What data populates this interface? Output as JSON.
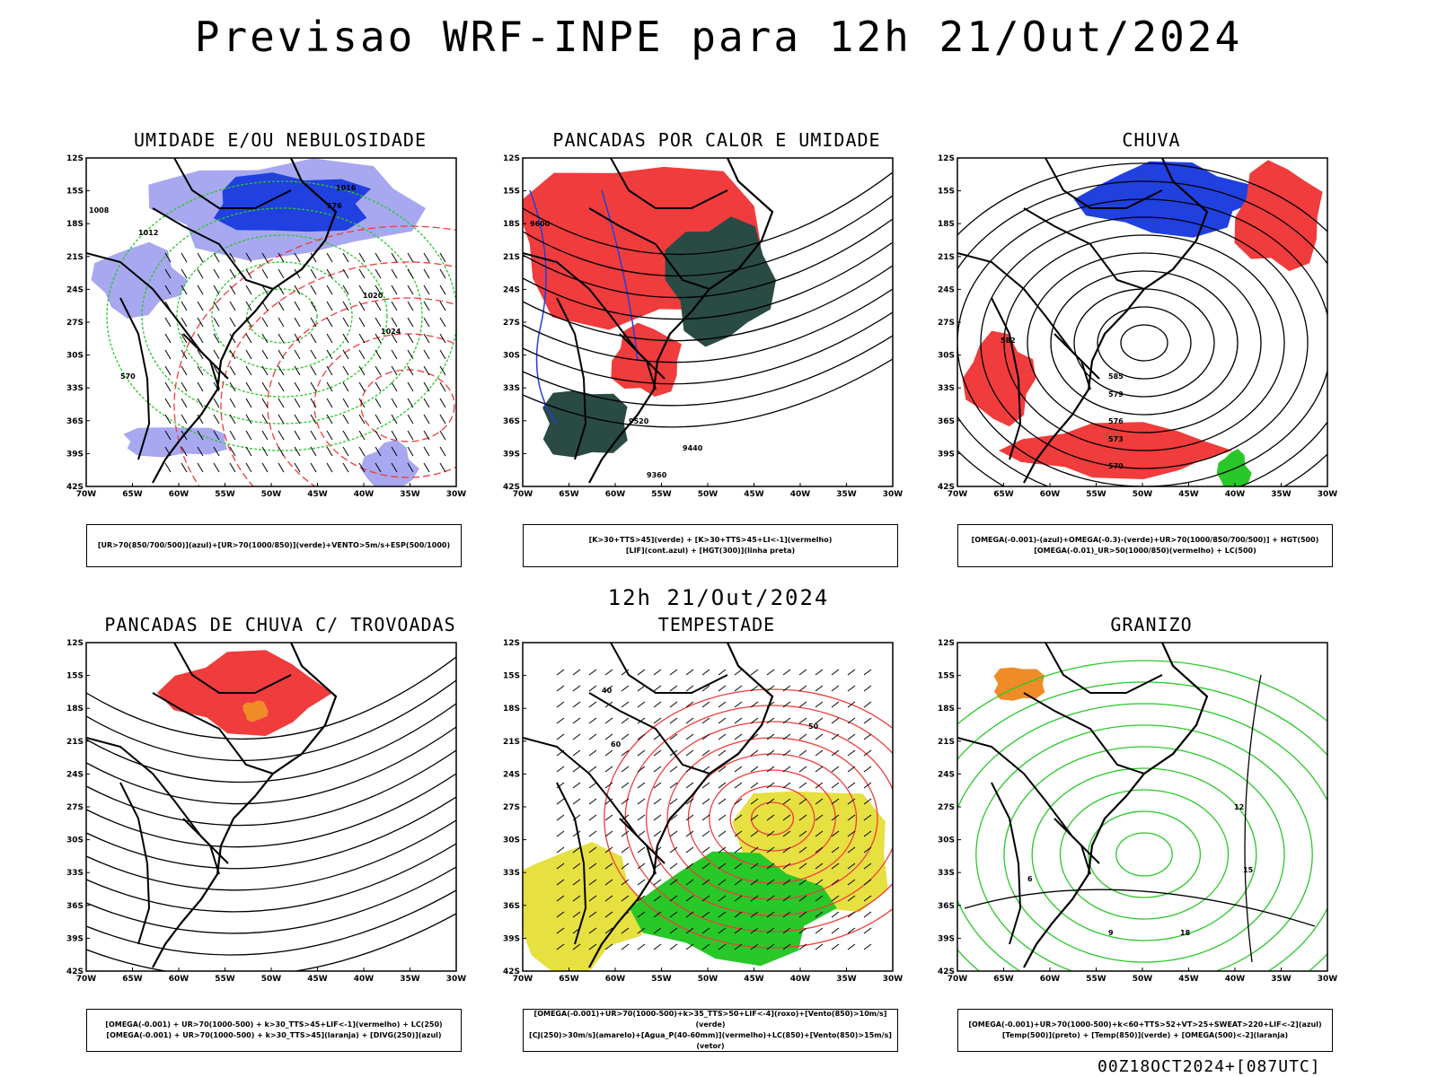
{
  "title": "Previsao WRF-INPE  para 12h 21/Out/2024",
  "subtitle": "12h 21/Out/2024",
  "footer": "00Z18OCT2024+[087UTC]",
  "axes": {
    "lat_labels": [
      "12S",
      "15S",
      "18S",
      "21S",
      "24S",
      "27S",
      "30S",
      "33S",
      "36S",
      "39S",
      "42S"
    ],
    "lon_labels": [
      "70W",
      "65W",
      "60W",
      "55W",
      "50W",
      "45W",
      "40W",
      "35W",
      "30W"
    ]
  },
  "colors": {
    "red": "#f03c3c",
    "blue": "#2040e0",
    "lightblue": "#a8a8f0",
    "green": "#28c828",
    "darkgreen": "#2a4a44",
    "yellow": "#e6e040",
    "orange": "#f08c28",
    "black": "#000000"
  },
  "panels": [
    {
      "title": "UMIDADE E/OU NEBULOSIDADE",
      "legend": [
        "[UR>70(850/700/500)](azul)+[UR>70(1000/850)](verde)+VENTO>5m/s+ESP(500/1000)"
      ],
      "labels": [
        "1008",
        "1012",
        "1016",
        "1020",
        "1024",
        "570",
        "576"
      ]
    },
    {
      "title": "PANCADAS POR CALOR E UMIDADE",
      "legend": [
        "[K>30+TTS>45](verde) + [K>30+TTS>45+LI<-1](vermelho)",
        "[LIF](cont.azul) + [HGT(300)](linha preta)"
      ],
      "labels": [
        "9600",
        "9520",
        "9440",
        "9360"
      ]
    },
    {
      "title": "CHUVA",
      "legend": [
        "[OMEGA(-0.001)-(azul)+OMEGA(-0.3)-(verde)+UR>70(1000/850/700/500)] + HGT(500)",
        "[OMEGA(-0.01)_UR>50(1000/850)(vermelho) + LC(500)"
      ],
      "labels": [
        "582",
        "579",
        "576",
        "573",
        "570",
        "585"
      ]
    },
    {
      "title": "PANCADAS DE CHUVA C/ TROVOADAS",
      "legend": [
        "[OMEGA(-0.001) + UR>70(1000-500) + k>30_TTS>45+LIF<-1](vermelho) + LC(250)",
        "[OMEGA(-0.001) + UR>70(1000-500) + k>30_TTS>45](laranja) + [DIVG(250)](azul)"
      ],
      "labels": []
    },
    {
      "title": "TEMPESTADE",
      "legend": [
        "[OMEGA(-0.001)+UR>70(1000-500)+k>35_TTS>50+LIF<-4](roxo)+[Vento(850)>10m/s](verde)",
        "[CJ(250)>30m/s](amarelo)+[Agua_P(40-60mm)](vermelho)+LC(850)+[Vento(850)>15m/s](vetor)"
      ],
      "labels": [
        "40",
        "50",
        "60"
      ]
    },
    {
      "title": "GRANIZO",
      "legend": [
        "[OMEGA(-0.001)+UR>70(1000-500)+k<60+TTS>52+VT>25+SWEAT>220+LIF<-2](azul)",
        "[Temp(500)](preto) + [Temp(850)](verde) + [OMEGA(500)<-2](laranja)"
      ],
      "labels": [
        "12",
        "15",
        "18",
        "6",
        "9"
      ]
    }
  ]
}
